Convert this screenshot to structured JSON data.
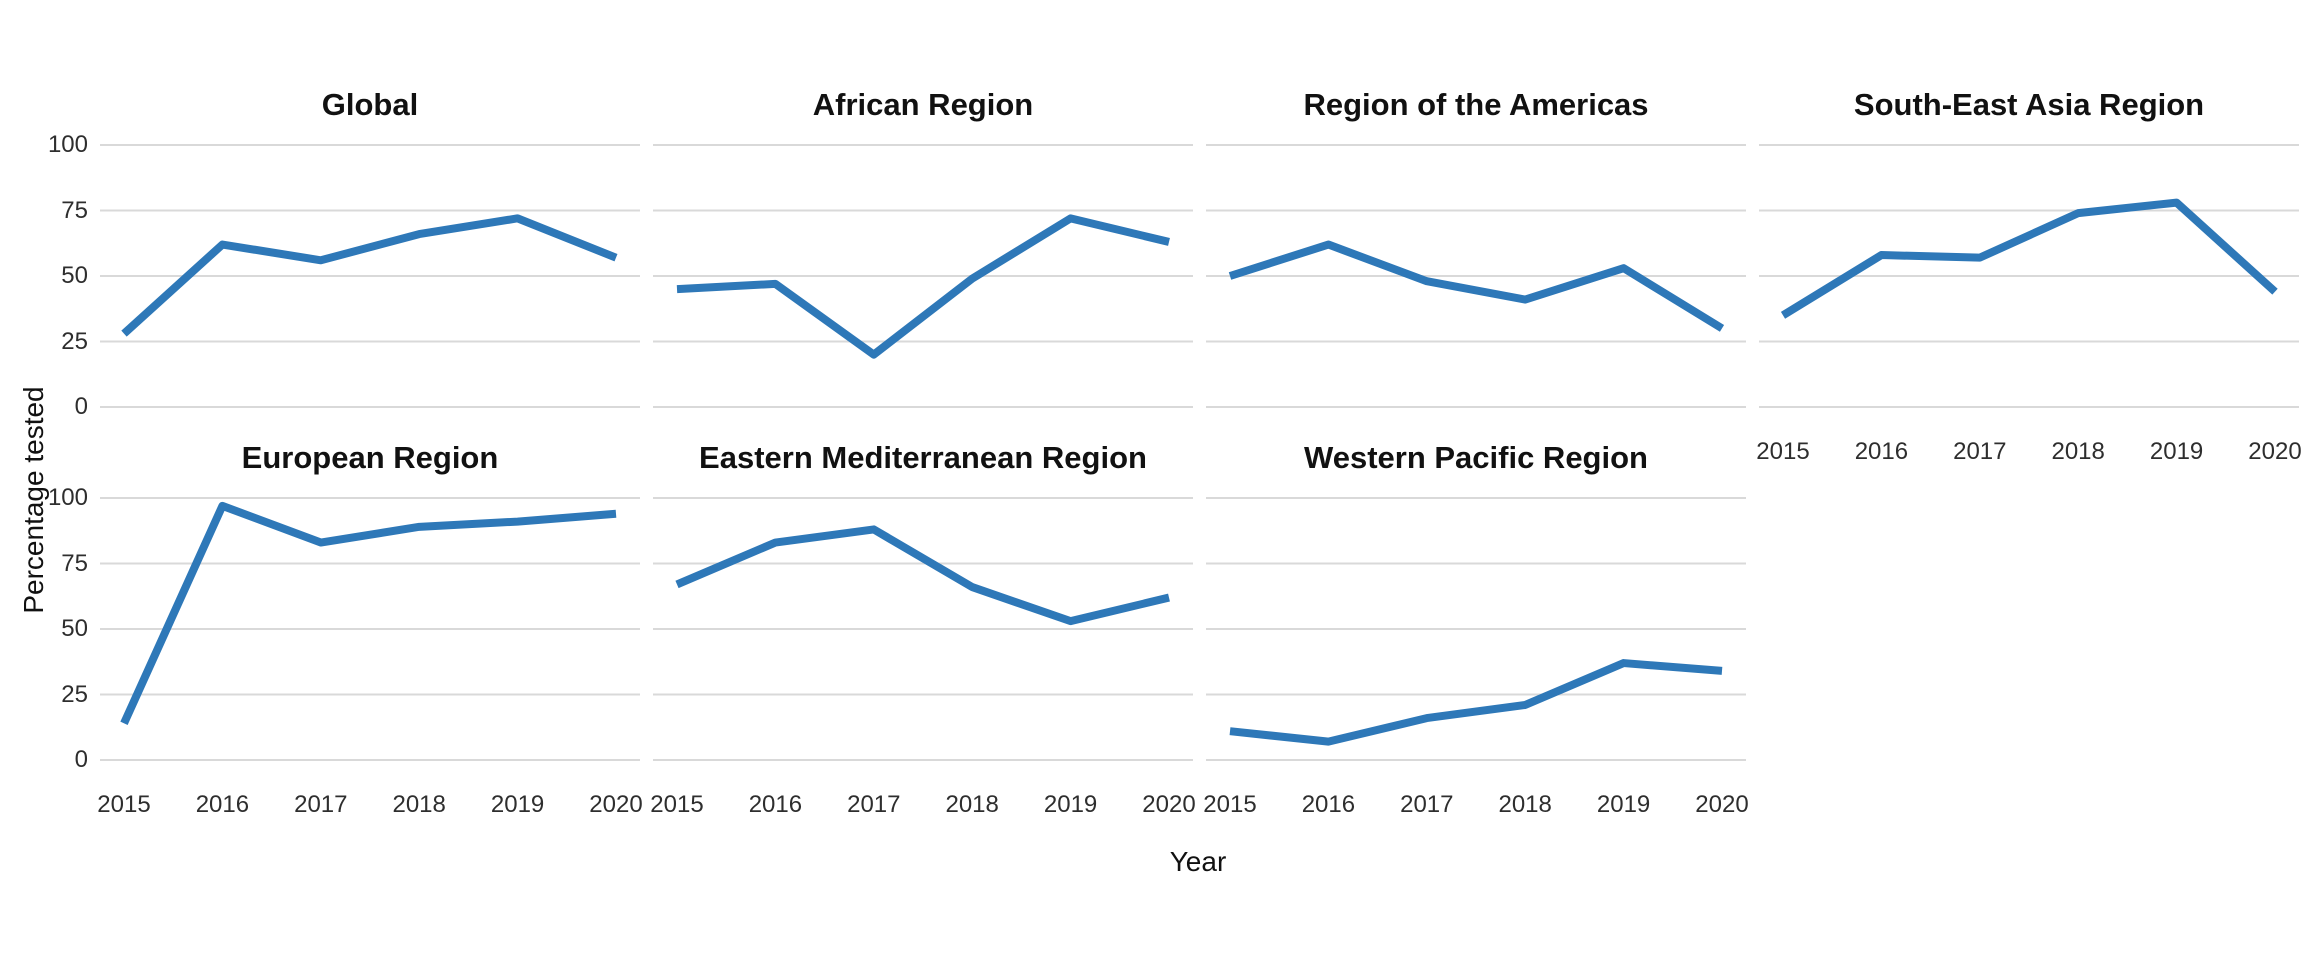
{
  "figure": {
    "background": "#FFFFFF"
  },
  "chart_data": {
    "type": "line",
    "layout": "facet-grid 2 rows x 4 cols, 7 panels, shared axes",
    "x": [
      2015,
      2016,
      2017,
      2018,
      2019,
      2020
    ],
    "x_tick_labels": [
      "2015",
      "2016",
      "2017",
      "2018",
      "2019",
      "2020"
    ],
    "yticks": [
      0,
      25,
      50,
      75,
      100
    ],
    "ytick_labels": [
      "0",
      "25",
      "50",
      "75",
      "100"
    ],
    "ylim": [
      0,
      100
    ],
    "xlabel": "Year",
    "ylabel": "Percentage tested",
    "grid": "horizontal gridlines only",
    "legend": "none",
    "line_color": "#2E78B8",
    "grid_color": "#D9D9D9",
    "title_color": "#111111",
    "tick_color": "#2E2E2E",
    "panels": [
      {
        "title": "Global",
        "values": [
          28,
          62,
          56,
          66,
          72,
          57
        ],
        "row": 0,
        "col": 0,
        "y_ticks_shown": true,
        "x_ticks_shown": false
      },
      {
        "title": "African Region",
        "values": [
          45,
          47,
          20,
          49,
          72,
          63
        ],
        "row": 0,
        "col": 1,
        "y_ticks_shown": false,
        "x_ticks_shown": false
      },
      {
        "title": "Region of the Americas",
        "values": [
          50,
          62,
          48,
          41,
          53,
          30
        ],
        "row": 0,
        "col": 2,
        "y_ticks_shown": false,
        "x_ticks_shown": false
      },
      {
        "title": "South-East Asia Region",
        "values": [
          35,
          58,
          57,
          74,
          78,
          44
        ],
        "row": 0,
        "col": 3,
        "y_ticks_shown": false,
        "x_ticks_shown": true
      },
      {
        "title": "European Region",
        "values": [
          14,
          97,
          83,
          89,
          91,
          94
        ],
        "row": 1,
        "col": 0,
        "y_ticks_shown": true,
        "x_ticks_shown": true
      },
      {
        "title": "Eastern Mediterranean Region",
        "values": [
          67,
          83,
          88,
          66,
          53,
          62
        ],
        "row": 1,
        "col": 1,
        "y_ticks_shown": false,
        "x_ticks_shown": true
      },
      {
        "title": "Western Pacific Region",
        "values": [
          11,
          7,
          16,
          21,
          37,
          34
        ],
        "row": 1,
        "col": 2,
        "y_ticks_shown": false,
        "x_ticks_shown": true
      }
    ]
  }
}
